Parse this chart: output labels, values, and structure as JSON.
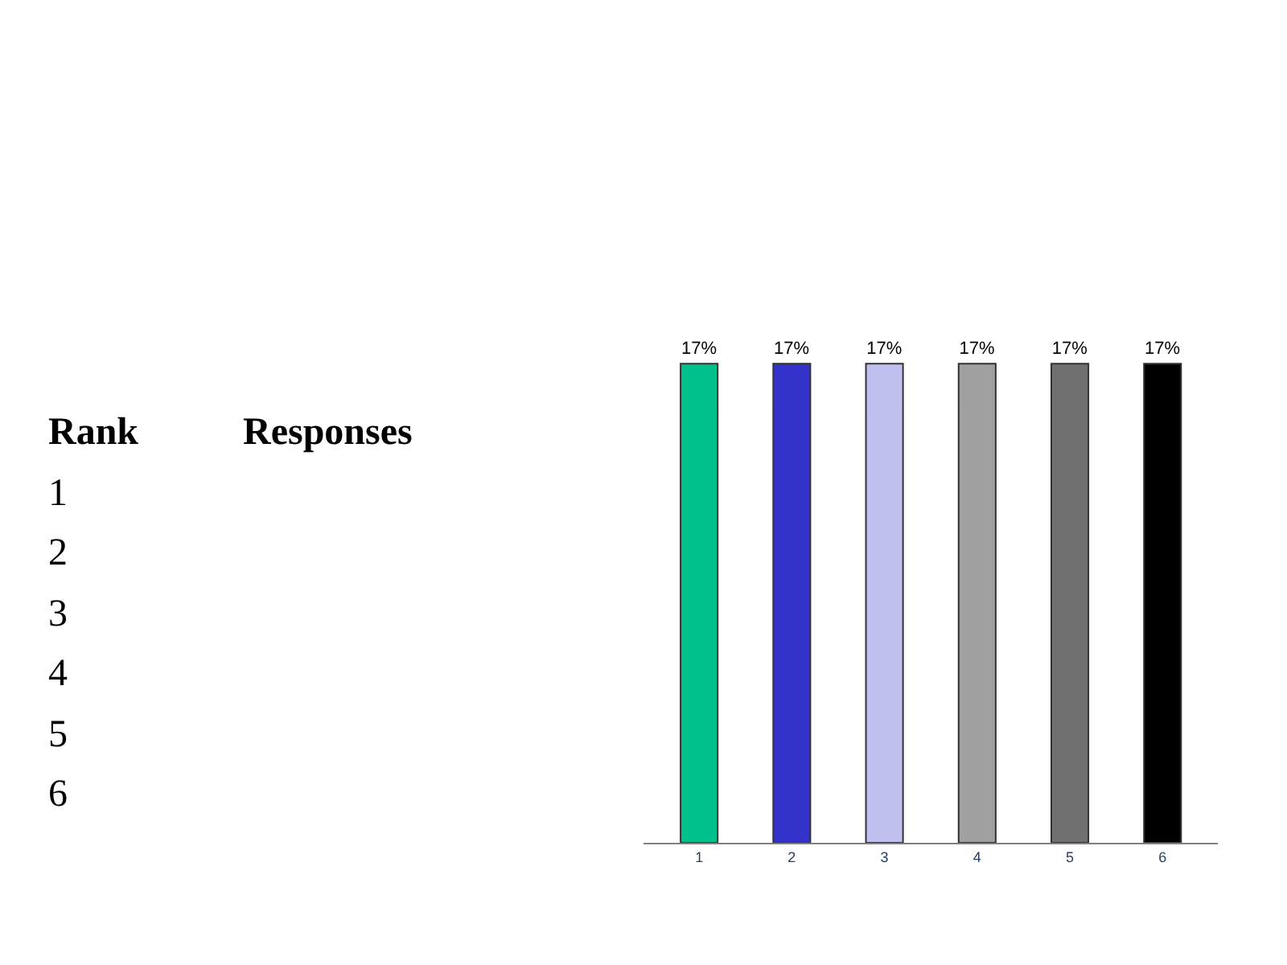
{
  "chart_data": {
    "type": "bar",
    "categories": [
      "1",
      "2",
      "3",
      "4",
      "5",
      "6"
    ],
    "values": [
      17,
      17,
      17,
      17,
      17,
      17
    ],
    "value_labels": [
      "17%",
      "17%",
      "17%",
      "17%",
      "17%",
      "17%"
    ],
    "colors": [
      "#00c08c",
      "#3333cc",
      "#c0c0f0",
      "#a0a0a0",
      "#707070",
      "#000000"
    ],
    "annotations": [
      "Rank",
      "Responses",
      "1",
      "2",
      "3",
      "4",
      "5",
      "6"
    ]
  }
}
